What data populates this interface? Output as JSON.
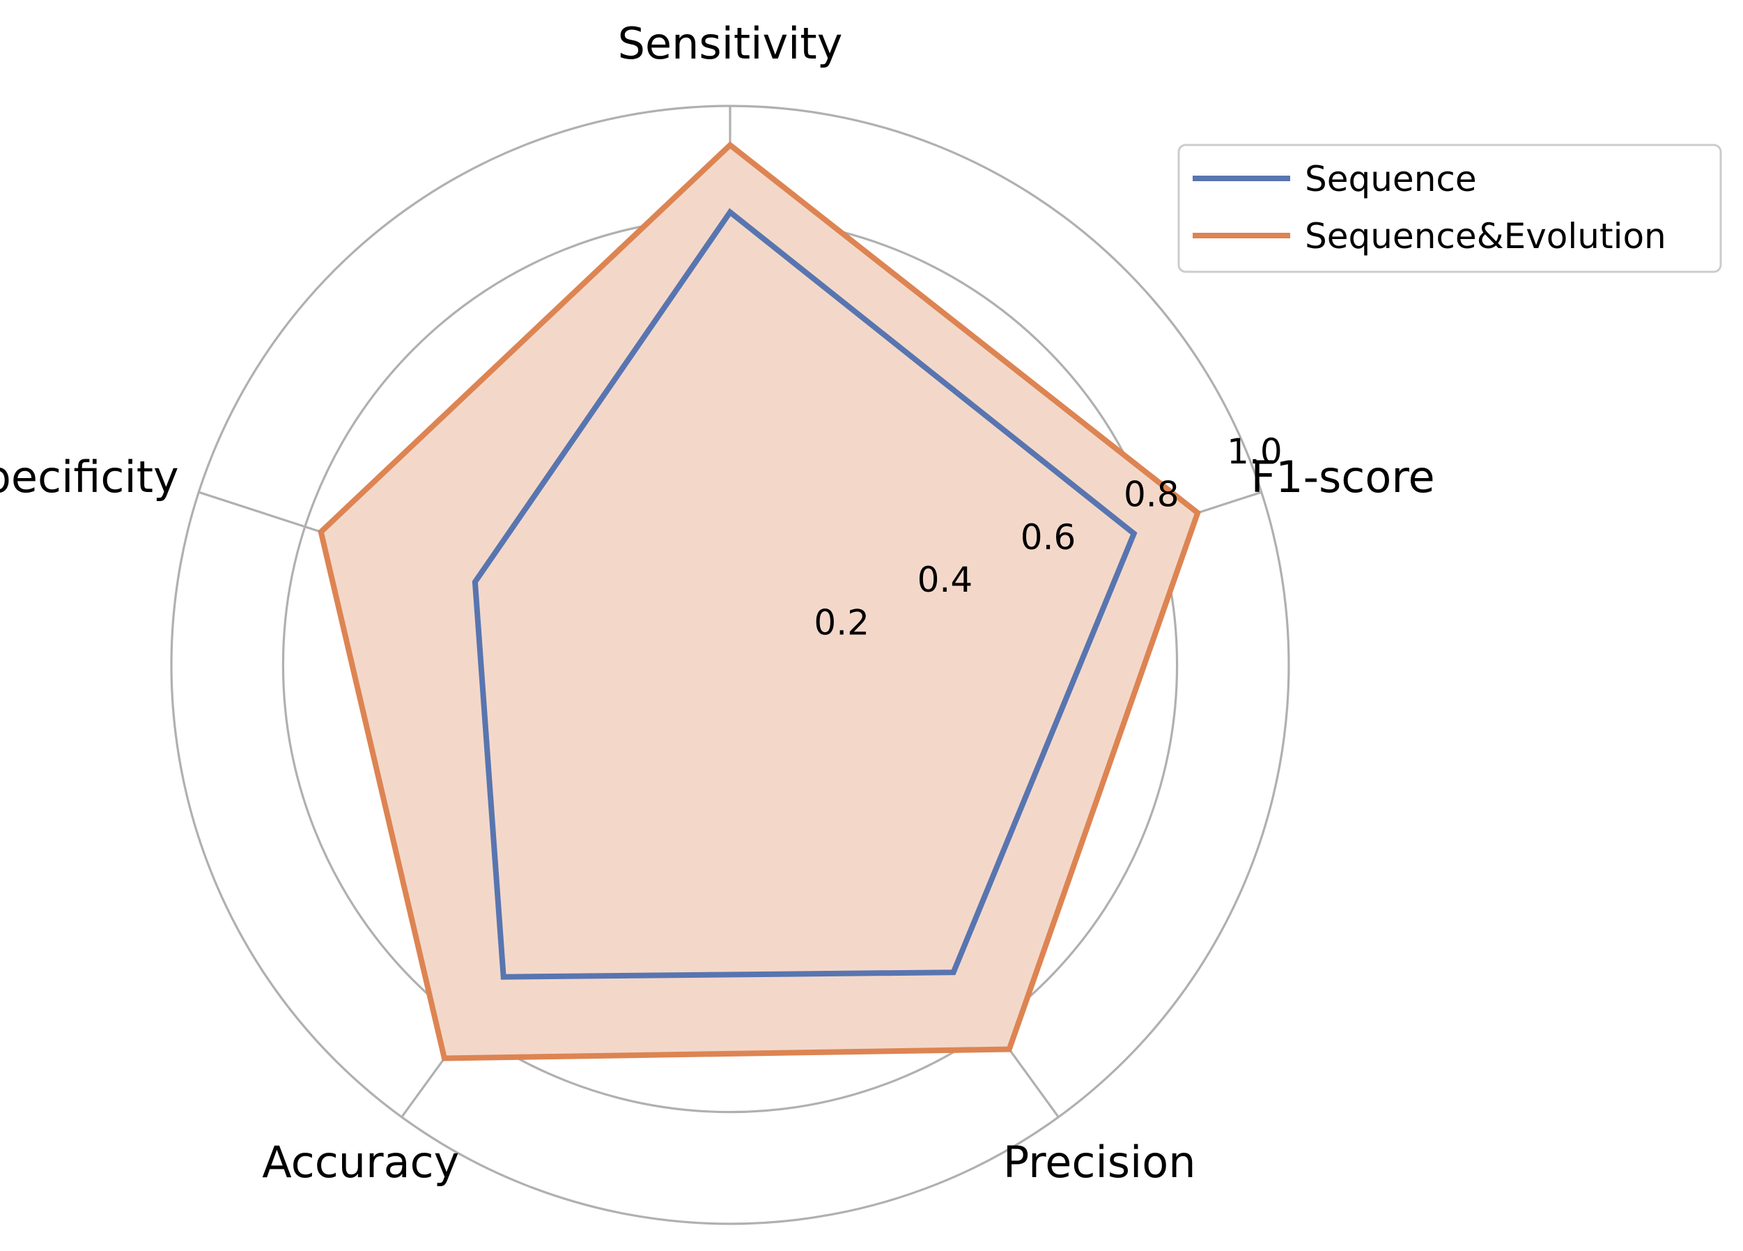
{
  "chart_data": {
    "type": "radar",
    "categories": [
      "Sensitivity",
      "Specificity",
      "Accuracy",
      "Precision",
      "F1-score"
    ],
    "rlim": [
      0,
      1.0
    ],
    "rticks": [
      0.2,
      0.4,
      0.6,
      0.8,
      1.0
    ],
    "rtick_labels": [
      "0.2",
      "0.4",
      "0.6",
      "0.8",
      "1.0"
    ],
    "grid": true,
    "legend_position": "top-right",
    "series": [
      {
        "name": "Sequence",
        "values": [
          0.81,
          0.48,
          0.69,
          0.68,
          0.76
        ],
        "color": "#5875b0",
        "fill": "#ab7f8e"
      },
      {
        "name": "Sequence&Evolution",
        "values": [
          0.93,
          0.77,
          0.87,
          0.85,
          0.88
        ],
        "color": "#dd8452",
        "fill": "#f3d8ca"
      }
    ]
  }
}
